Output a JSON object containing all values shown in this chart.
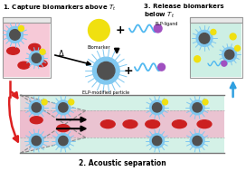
{
  "title1": "1. Capture biomarkers above $T_t$",
  "title2": "3. Release biomarkers\nbelow $T_t$",
  "label_bottom": "2. Acoustic separation",
  "label_biomarker": "Biomarker",
  "label_elp_ligand": "ELP-ligand",
  "label_elp_particle": "ELP-modified particle",
  "bg_color": "#ffffff",
  "pink_bg": "#f5c0d0",
  "mint_bg": "#c5ede0",
  "channel_pink": "#f0b8cc",
  "channel_mint": "#b8e8d8",
  "red_cell_color": "#cc2020",
  "particle_gray": "#505050",
  "particle_ring": "#80c8f0",
  "yellow_marker": "#f0e010",
  "elp_color": "#50b8f0",
  "elp_tip": "#a050c0",
  "arrow_red": "#dd2020",
  "arrow_blue": "#30a0e0",
  "arrow_black": "#111111"
}
